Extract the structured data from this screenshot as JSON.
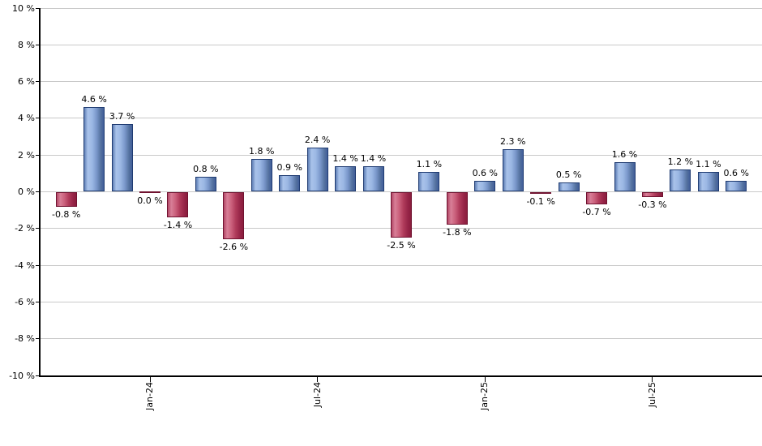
{
  "chart_data": {
    "type": "bar",
    "title": "",
    "xlabel": "",
    "ylabel": "",
    "ylim": [
      -10,
      10
    ],
    "grid": true,
    "legend": false,
    "values": [
      -0.8,
      4.6,
      3.7,
      0.0,
      -1.4,
      0.8,
      -2.6,
      1.8,
      0.9,
      2.4,
      1.4,
      1.4,
      -2.5,
      1.1,
      -1.8,
      0.6,
      2.3,
      -0.1,
      0.5,
      -0.7,
      1.6,
      -0.3,
      1.2,
      1.1,
      0.6
    ],
    "bar_labels": [
      "-0.8 %",
      "4.6 %",
      "3.7 %",
      "0.0 %",
      "-1.4 %",
      "0.8 %",
      "-2.6 %",
      "1.8 %",
      "0.9 %",
      "2.4 %",
      "1.4 %",
      "1.4 %",
      "-2.5 %",
      "1.1 %",
      "-1.8 %",
      "0.6 %",
      "2.3 %",
      "-0.1 %",
      "0.5 %",
      "-0.7 %",
      "1.6 %",
      "-0.3 %",
      "1.2 %",
      "1.1 %",
      "0.6 %"
    ],
    "x_ticks": [
      {
        "bar_index": 3,
        "label": "Jan-24"
      },
      {
        "bar_index": 9,
        "label": "Jul-24"
      },
      {
        "bar_index": 15,
        "label": "Jan-25"
      },
      {
        "bar_index": 21,
        "label": "Jul-25"
      }
    ],
    "y_ticks": [
      {
        "value": 10,
        "label": "10 %"
      },
      {
        "value": 8,
        "label": "8 %"
      },
      {
        "value": 6,
        "label": "6 %"
      },
      {
        "value": 4,
        "label": "4 %"
      },
      {
        "value": 2,
        "label": "2 %"
      },
      {
        "value": 0,
        "label": "0 %"
      },
      {
        "value": -2,
        "label": "-2 %"
      },
      {
        "value": -4,
        "label": "-4 %"
      },
      {
        "value": -6,
        "label": "-6 %"
      },
      {
        "value": -8,
        "label": "-8 %"
      },
      {
        "value": -10,
        "label": "-10 %"
      }
    ],
    "colors": {
      "positive_bar": "#9cb8e4",
      "positive_border": "#1f3b71",
      "negative_bar": "#ca5f7b",
      "negative_border": "#701230",
      "gridline": "#c9c9c9",
      "axis": "#000000",
      "text": "#000000",
      "background": "#ffffff"
    }
  }
}
